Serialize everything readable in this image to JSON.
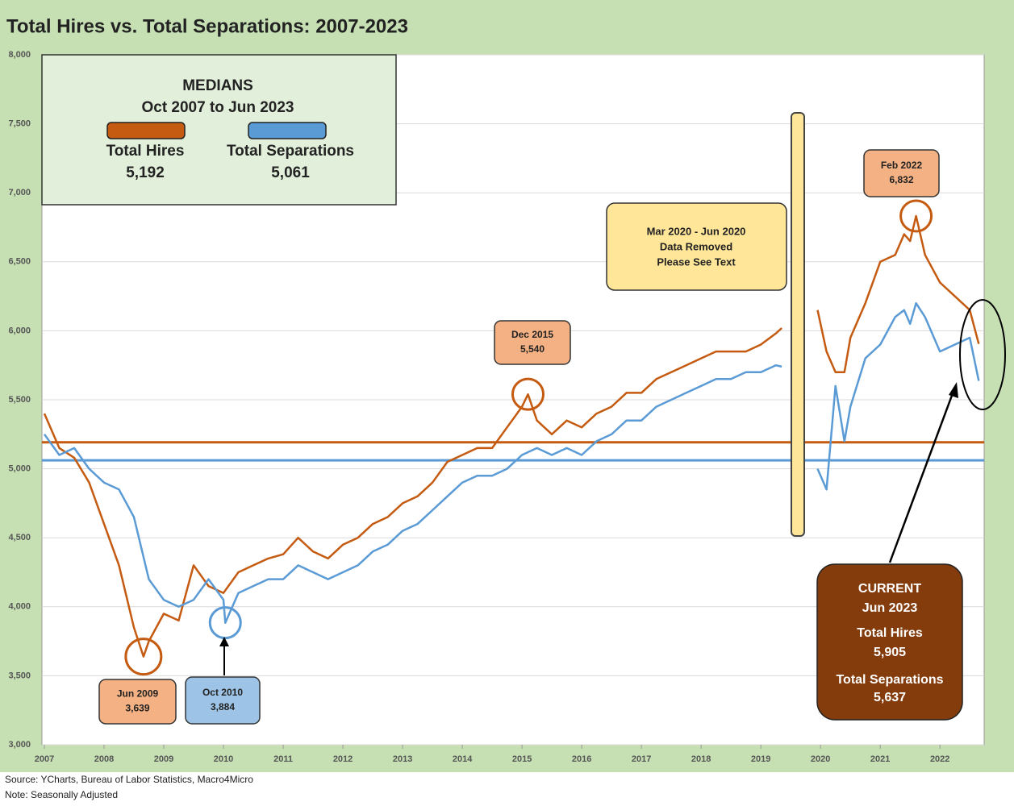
{
  "chart_data": {
    "type": "line",
    "title": "Total Hires vs. Total Separations: 2007-2023",
    "xlim": [
      2007,
      2022.7
    ],
    "xticks": [
      2007,
      2008,
      2009,
      2010,
      2011,
      2012,
      2013,
      2014,
      2015,
      2016,
      2017,
      2018,
      2019,
      2020,
      2021,
      2022
    ],
    "ylim": [
      3000,
      8000
    ],
    "yticks": [
      {
        "value": 3000,
        "label": "3,000"
      },
      {
        "value": 3500,
        "label": "3,500"
      },
      {
        "value": 4000,
        "label": "4,000"
      },
      {
        "value": 4500,
        "label": "4,500"
      },
      {
        "value": 5000,
        "label": "5,000"
      },
      {
        "value": 5500,
        "label": "5,500"
      },
      {
        "value": 6000,
        "label": "6,000"
      },
      {
        "value": 6500,
        "label": "6,500"
      },
      {
        "value": 7000,
        "label": "7,000"
      },
      {
        "value": 7500,
        "label": "7,500"
      },
      {
        "value": 8000,
        "label": "8,000"
      }
    ],
    "grid": true,
    "series": [
      {
        "name": "Total Hires",
        "color": "#c55a11",
        "x": [
          2007,
          2007.25,
          2007.5,
          2007.75,
          2008,
          2008.25,
          2008.5,
          2008.66,
          2008.75,
          2009,
          2009.25,
          2009.5,
          2009.75,
          2010,
          2010.25,
          2010.5,
          2010.75,
          2011,
          2011.25,
          2011.5,
          2011.75,
          2012,
          2012.25,
          2012.5,
          2012.75,
          2013,
          2013.25,
          2013.5,
          2013.75,
          2014,
          2014.25,
          2014.5,
          2014.75,
          2015,
          2015.1,
          2015.25,
          2015.5,
          2015.75,
          2016,
          2016.25,
          2016.5,
          2016.75,
          2017,
          2017.25,
          2017.5,
          2017.75,
          2018,
          2018.25,
          2018.5,
          2018.75,
          2019,
          2019.25,
          2019.35,
          2019.65,
          2019.95,
          2020.1,
          2020.25,
          2020.4,
          2020.5,
          2020.75,
          2021,
          2021.25,
          2021.4,
          2021.5,
          2021.6,
          2021.75,
          2022,
          2022.25,
          2022.5,
          2022.65
        ],
        "values": [
          5400,
          5150,
          5080,
          4900,
          4600,
          4300,
          3850,
          3639,
          3750,
          3950,
          3900,
          4300,
          4150,
          4100,
          4250,
          4300,
          4350,
          4380,
          4500,
          4400,
          4350,
          4450,
          4500,
          4600,
          4650,
          4750,
          4800,
          4900,
          5050,
          5100,
          5150,
          5150,
          5300,
          5450,
          5540,
          5350,
          5250,
          5350,
          5300,
          5400,
          5450,
          5550,
          5550,
          5650,
          5700,
          5750,
          5800,
          5850,
          5850,
          5850,
          5900,
          5980,
          6020,
          null,
          6150,
          5850,
          5700,
          5700,
          5950,
          6200,
          6500,
          6550,
          6700,
          6650,
          6832,
          6550,
          6350,
          6250,
          6150,
          5905
        ]
      },
      {
        "name": "Total Separations",
        "color": "#5b9bd5",
        "x": [
          2007,
          2007.25,
          2007.5,
          2007.75,
          2008,
          2008.25,
          2008.5,
          2008.75,
          2009,
          2009.25,
          2009.5,
          2009.75,
          2010,
          2010.03,
          2010.25,
          2010.5,
          2010.75,
          2011,
          2011.25,
          2011.5,
          2011.75,
          2012,
          2012.25,
          2012.5,
          2012.75,
          2013,
          2013.25,
          2013.5,
          2013.75,
          2014,
          2014.25,
          2014.5,
          2014.75,
          2015,
          2015.25,
          2015.5,
          2015.75,
          2016,
          2016.25,
          2016.5,
          2016.75,
          2017,
          2017.25,
          2017.5,
          2017.75,
          2018,
          2018.25,
          2018.5,
          2018.75,
          2019,
          2019.25,
          2019.35,
          2019.65,
          2019.95,
          2020.1,
          2020.25,
          2020.4,
          2020.5,
          2020.75,
          2021,
          2021.25,
          2021.4,
          2021.5,
          2021.6,
          2021.75,
          2022,
          2022.25,
          2022.5,
          2022.65
        ],
        "values": [
          5250,
          5100,
          5150,
          5000,
          4900,
          4850,
          4650,
          4200,
          4050,
          4000,
          4050,
          4200,
          4050,
          3884,
          4100,
          4150,
          4200,
          4200,
          4300,
          4250,
          4200,
          4250,
          4300,
          4400,
          4450,
          4550,
          4600,
          4700,
          4800,
          4900,
          4950,
          4950,
          5000,
          5100,
          5150,
          5100,
          5150,
          5100,
          5200,
          5250,
          5350,
          5350,
          5450,
          5500,
          5550,
          5600,
          5650,
          5650,
          5700,
          5700,
          5750,
          5740,
          null,
          5000,
          4850,
          5600,
          5200,
          5450,
          5800,
          5900,
          6100,
          6150,
          6050,
          6200,
          6100,
          5850,
          5900,
          5950,
          5637
        ]
      }
    ],
    "medians": {
      "title": "MEDIANS",
      "period": "Oct 2007 to Jun 2023",
      "values": [
        5192,
        5061
      ],
      "value_labels": [
        "5,192",
        "5,061"
      ]
    },
    "annotations": [
      {
        "label": "Jun 2009",
        "x": 2008.66,
        "value": 3639,
        "value_label": "3,639",
        "series": 0
      },
      {
        "label": "Oct 2010",
        "x": 2010.03,
        "value": 3884,
        "value_label": "3,884",
        "series": 1
      },
      {
        "label": "Dec 2015",
        "x": 2015.1,
        "value": 5540,
        "value_label": "5,540",
        "series": 0
      },
      {
        "label": "Feb 2022",
        "x": 2021.6,
        "value": 6832,
        "value_label": "6,832",
        "series": 0
      }
    ],
    "gap_note": [
      "Mar 2020 - Jun 2020",
      "Data Removed",
      "Please See Text"
    ],
    "current": {
      "title": "CURRENT",
      "date": "Jun 2023",
      "value_labels": [
        "5,905",
        "5,637"
      ],
      "values": [
        5905,
        5637
      ]
    },
    "notes": [
      "Source: YCharts, Bureau of Labor Statistics, Macro4Micro",
      "Note: Seasonally Adjusted"
    ]
  }
}
